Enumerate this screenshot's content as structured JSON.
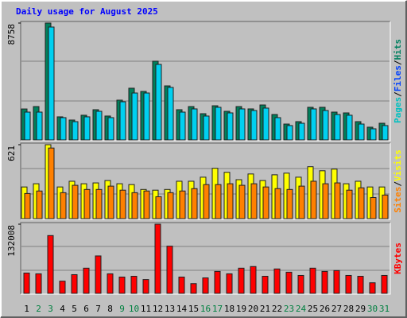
{
  "chart_data": [
    {
      "type": "bar",
      "title": "Daily usage for August 2025",
      "ylim": [
        0,
        8758
      ],
      "yticks": [
        8758
      ],
      "legend_separator": "/",
      "legend": [
        {
          "text": "Pages",
          "color": "#00c0c0"
        },
        {
          "text": "Files",
          "color": "#0040ff"
        },
        {
          "text": "Hits",
          "color": "#008060"
        }
      ],
      "series": [
        {
          "name": "Hits",
          "color": "#00805c",
          "values": [
            2320,
            2500,
            8758,
            1730,
            1490,
            1850,
            2265,
            1790,
            2980,
            3875,
            3635,
            5900,
            4050,
            2265,
            2500,
            1965,
            2560,
            2145,
            2500,
            2325,
            2620,
            1905,
            1190,
            1370,
            2445,
            2445,
            2085,
            2025,
            1370,
            955,
            1250
          ]
        },
        {
          "name": "Pages",
          "color": "#00d0f0",
          "values": [
            2085,
            2085,
            8460,
            1670,
            1370,
            1730,
            2145,
            1670,
            2860,
            3515,
            3515,
            5660,
            3935,
            2085,
            2325,
            1790,
            2445,
            2025,
            2325,
            2205,
            2385,
            1670,
            1075,
            1250,
            2325,
            2205,
            1905,
            1850,
            1190,
            835,
            1075
          ]
        }
      ]
    },
    {
      "type": "bar",
      "ylim": [
        0,
        621
      ],
      "yticks": [
        621
      ],
      "legend_separator": "/",
      "legend": [
        {
          "text": "Sites",
          "color": "#ff8000"
        },
        {
          "text": "Visits",
          "color": "#ffff00"
        }
      ],
      "series": [
        {
          "name": "Visits",
          "color": "#ffff00",
          "values": [
            266,
            293,
            621,
            266,
            314,
            293,
            300,
            320,
            293,
            286,
            245,
            239,
            245,
            314,
            314,
            348,
            423,
            389,
            327,
            375,
            320,
            368,
            382,
            348,
            436,
            402,
            416,
            293,
            314,
            266,
            266
          ]
        },
        {
          "name": "Sites",
          "color": "#ff8000",
          "values": [
            211,
            232,
            593,
            218,
            280,
            245,
            245,
            273,
            239,
            218,
            232,
            184,
            218,
            232,
            252,
            286,
            286,
            293,
            280,
            293,
            266,
            252,
            245,
            273,
            314,
            293,
            300,
            239,
            259,
            177,
            198
          ]
        }
      ]
    },
    {
      "type": "bar",
      "ylim": [
        0,
        132008
      ],
      "yticks": [
        132008
      ],
      "legend": [
        {
          "text": "KBytes",
          "color": "#ff0000"
        }
      ],
      "categories": [
        "1",
        "2",
        "3",
        "4",
        "5",
        "6",
        "7",
        "8",
        "9",
        "10",
        "11",
        "12",
        "13",
        "14",
        "15",
        "16",
        "17",
        "18",
        "19",
        "20",
        "21",
        "22",
        "23",
        "24",
        "25",
        "26",
        "27",
        "28",
        "29",
        "30",
        "31"
      ],
      "category_colors": [
        "#000000",
        "#008040",
        "#008040",
        "#000000",
        "#000000",
        "#000000",
        "#000000",
        "#000000",
        "#008040",
        "#008040",
        "#000000",
        "#000000",
        "#000000",
        "#000000",
        "#000000",
        "#008040",
        "#008040",
        "#000000",
        "#000000",
        "#000000",
        "#000000",
        "#000000",
        "#008040",
        "#008040",
        "#000000",
        "#000000",
        "#000000",
        "#000000",
        "#000000",
        "#008040",
        "#008040"
      ],
      "series": [
        {
          "name": "KBytes",
          "color": "#ff0000",
          "values": [
            38800,
            37300,
            110300,
            23300,
            35700,
            48100,
            71400,
            37300,
            31100,
            32600,
            26400,
            132008,
            90100,
            31100,
            18600,
            29500,
            41900,
            37300,
            48100,
            51200,
            32600,
            46600,
            40400,
            34200,
            48100,
            41900,
            43500,
            34200,
            32600,
            20200,
            34200
          ]
        }
      ]
    }
  ]
}
